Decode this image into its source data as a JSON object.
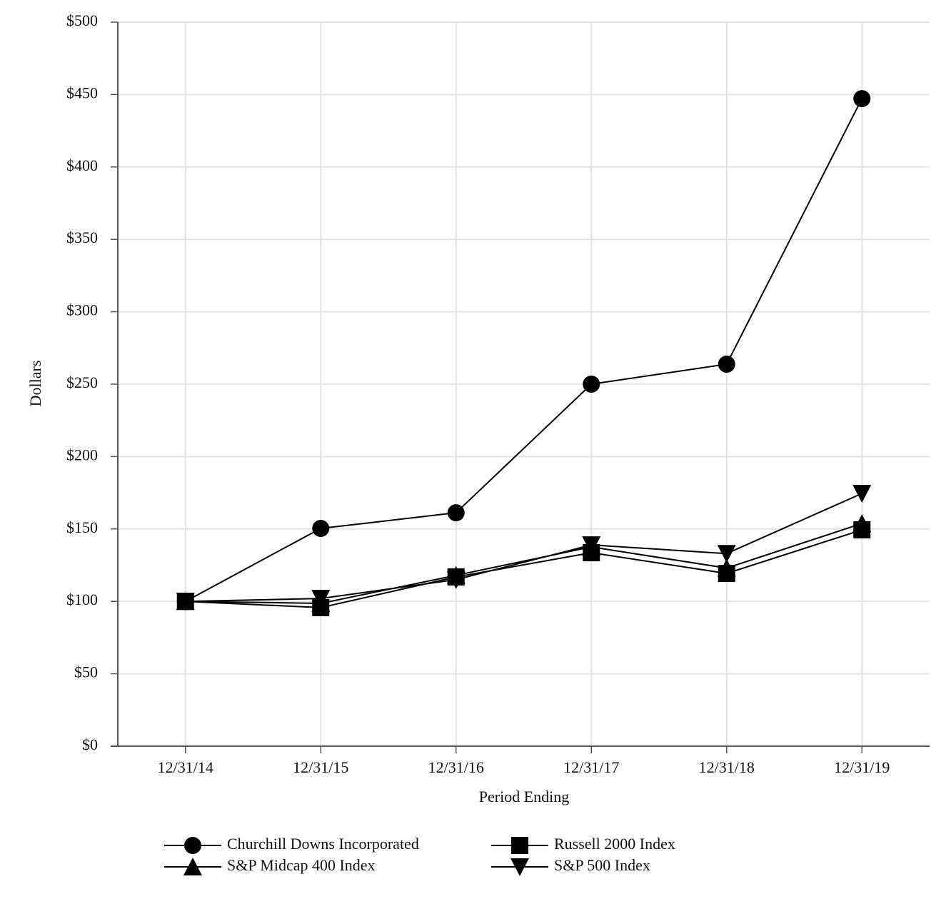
{
  "chart_data": {
    "type": "line",
    "x_label": "Period Ending",
    "y_label": "Dollars",
    "categories": [
      "12/31/14",
      "12/31/15",
      "12/31/16",
      "12/31/17",
      "12/31/18",
      "12/31/19"
    ],
    "series": [
      {
        "name": "Churchill Downs Incorporated",
        "color": "#000000",
        "marker": "circle",
        "values": [
          100,
          150.4,
          161.2,
          250,
          263.8,
          447.2
        ]
      },
      {
        "name": "Russell 2000 Index",
        "color": "#000000",
        "marker": "square",
        "values": [
          100,
          95.7,
          116.9,
          133.6,
          119.3,
          149.4
        ]
      },
      {
        "name": "S&P Midcap 400 Index",
        "color": "#000000",
        "marker": "triangle-up",
        "values": [
          100,
          98.6,
          118,
          137.6,
          123,
          153.8
        ]
      },
      {
        "name": "S&P 500 Index",
        "color": "#000000",
        "marker": "triangle-down",
        "values": [
          100,
          102,
          115,
          139,
          133,
          174.5
        ]
      }
    ],
    "ylim": [
      0,
      500
    ],
    "yticks": [
      {
        "value": 0,
        "label": "$0"
      },
      {
        "value": 50,
        "label": "$50"
      },
      {
        "value": 100,
        "label": "$100"
      },
      {
        "value": 150,
        "label": "$150"
      },
      {
        "value": 200,
        "label": "$200"
      },
      {
        "value": 250,
        "label": "$250"
      },
      {
        "value": 300,
        "label": "$300"
      },
      {
        "value": 350,
        "label": "$350"
      },
      {
        "value": 400,
        "label": "$400"
      },
      {
        "value": 450,
        "label": "$450"
      },
      {
        "value": 500,
        "label": "$500"
      }
    ],
    "grid": true
  }
}
